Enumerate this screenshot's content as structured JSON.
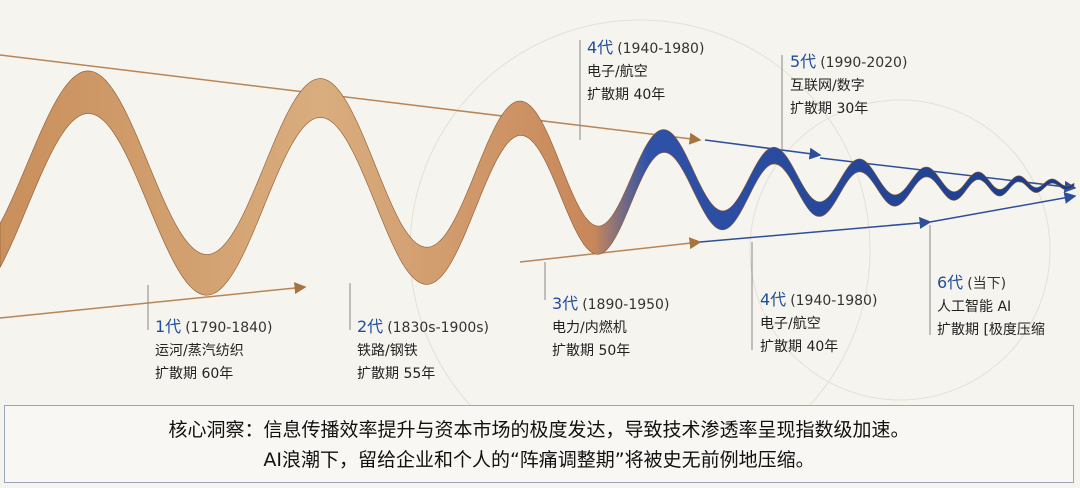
{
  "labels": [
    {
      "generation": "4代",
      "period": "(1940-1980)",
      "field": "电子/航空",
      "diffusion": "扩散期 40年"
    },
    {
      "generation": "5代",
      "period": "(1990-2020)",
      "field": "互联网/数字",
      "diffusion": "扩散期 30年"
    },
    {
      "generation": "1代",
      "period": "(1790-1840)",
      "field": "运河/蒸汽纺织",
      "diffusion": "扩散期 60年"
    },
    {
      "generation": "2代",
      "period": "(1830s-1900s)",
      "field": "铁路/钢铁",
      "diffusion": "扩散期 55年"
    },
    {
      "generation": "3代",
      "period": "(1890-1950)",
      "field": "电力/内燃机",
      "diffusion": "扩散期 50年"
    },
    {
      "generation": "4代",
      "period": "(1940-1980)",
      "field": "电子/航空",
      "diffusion": "扩散期 40年"
    },
    {
      "generation": "6代",
      "period": "(当下)",
      "field": "人工智能 AI",
      "diffusion": "扩散期 [极度压缩"
    }
  ],
  "insight": {
    "line1": "核心洞察：信息传播效率提升与资本市场的极度发达，导致技术渗透率呈现指数级加速。",
    "line2": "AI浪潮下，留给企业和个人的“阵痛调整期”将被史无前例地压缩。"
  }
}
